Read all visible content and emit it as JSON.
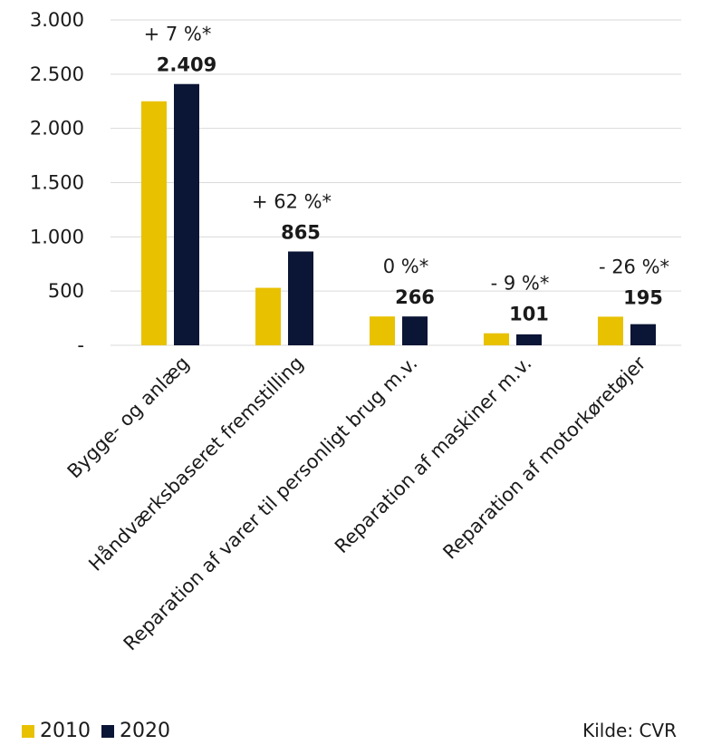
{
  "chart_data": {
    "type": "bar",
    "categories": [
      "Bygge- og anlæg",
      "Håndværksbaseret fremstilling",
      "Reparation af varer til personligt brug m.v.",
      "Reparation af maskiner m.v.",
      "Reparation af motorkøretøjer"
    ],
    "series": [
      {
        "name": "2010",
        "values": [
          2250,
          530,
          266,
          111,
          264
        ],
        "color": "#e8c100"
      },
      {
        "name": "2020",
        "values": [
          2409,
          865,
          266,
          101,
          195
        ],
        "color": "#0b1535"
      }
    ],
    "value_labels": [
      "2.409",
      "865",
      "266",
      "101",
      "195"
    ],
    "change_labels": [
      "+ 7 %*",
      "+ 62 %*",
      "0 %*",
      "- 9 %*",
      "- 26 %*"
    ],
    "yticks": [
      "-",
      "500",
      "1.000",
      "1.500",
      "2.000",
      "2.500",
      "3.000"
    ],
    "ylim": [
      0,
      3000
    ],
    "grid": true,
    "legend_position": "bottom-left",
    "source": "Kilde: CVR"
  }
}
